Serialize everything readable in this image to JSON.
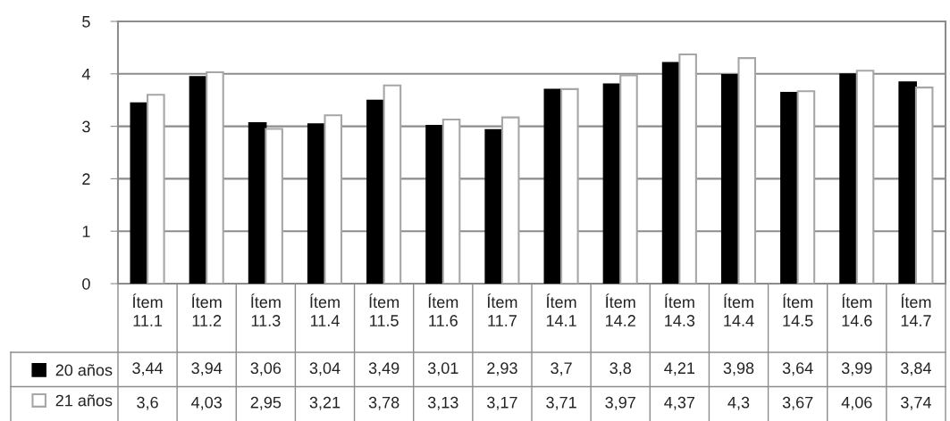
{
  "chart_data": {
    "type": "bar",
    "categories": [
      "Ítem 11.1",
      "Ítem 11.2",
      "Ítem 11.3",
      "Ítem 11.4",
      "Ítem 11.5",
      "Ítem 11.6",
      "Ítem 11.7",
      "Ítem 14.1",
      "Ítem 14.2",
      "Ítem 14.3",
      "Ítem 14.4",
      "Ítem 14.5",
      "Ítem 14.6",
      "Ítem 14.7"
    ],
    "series": [
      {
        "name": "20 años",
        "color": "#000000",
        "values": [
          3.44,
          3.94,
          3.06,
          3.04,
          3.49,
          3.01,
          2.93,
          3.7,
          3.8,
          4.21,
          3.98,
          3.64,
          3.99,
          3.84
        ],
        "value_labels": [
          "3,44",
          "3,94",
          "3,06",
          "3,04",
          "3,49",
          "3,01",
          "2,93",
          "3,7",
          "3,8",
          "4,21",
          "3,98",
          "3,64",
          "3,99",
          "3,84"
        ]
      },
      {
        "name": "21 años",
        "color": "#ffffff",
        "values": [
          3.6,
          4.03,
          2.95,
          3.21,
          3.78,
          3.13,
          3.17,
          3.71,
          3.97,
          4.37,
          4.3,
          3.67,
          4.06,
          3.74
        ],
        "value_labels": [
          "3,6",
          "4,03",
          "2,95",
          "3,21",
          "3,78",
          "3,13",
          "3,17",
          "3,71",
          "3,97",
          "4,37",
          "4,3",
          "3,67",
          "4,06",
          "3,74"
        ]
      }
    ],
    "ylim": [
      0,
      5
    ],
    "yticks": [
      0,
      1,
      2,
      3,
      4,
      5
    ],
    "grid": "y",
    "legend": "bottom"
  }
}
